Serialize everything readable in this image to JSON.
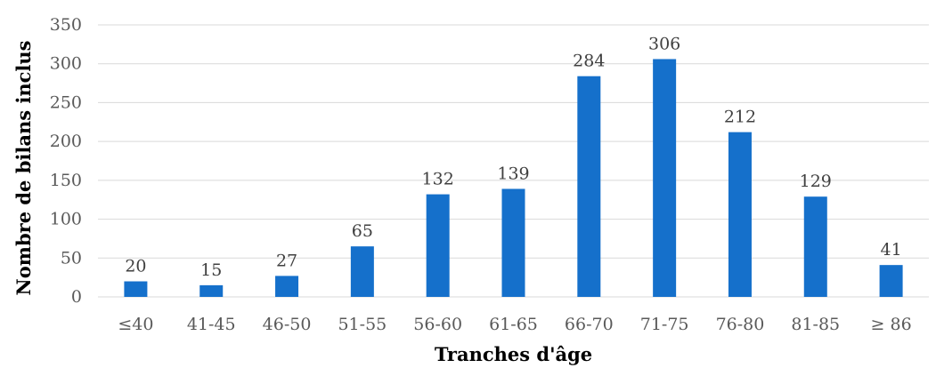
{
  "chart_data": {
    "type": "bar",
    "title": "",
    "xlabel": "Tranches d'âge",
    "ylabel": "Nombre de bilans inclus",
    "categories": [
      "≤40",
      "41-45",
      "46-50",
      "51-55",
      "56-60",
      "61-65",
      "66-70",
      "71-75",
      "76-80",
      "81-85",
      "≥ 86"
    ],
    "series": [
      {
        "values": [
          20,
          15,
          27,
          65,
          132,
          139,
          284,
          306,
          212,
          129,
          41
        ]
      }
    ],
    "ylim": [
      0,
      350
    ],
    "yticks": [
      0,
      50,
      100,
      150,
      200,
      250,
      300,
      350
    ],
    "data_labels": true,
    "grid": true,
    "legend": "none",
    "bar_color": "#1570CB",
    "grid_color": "#D9D9D9"
  }
}
